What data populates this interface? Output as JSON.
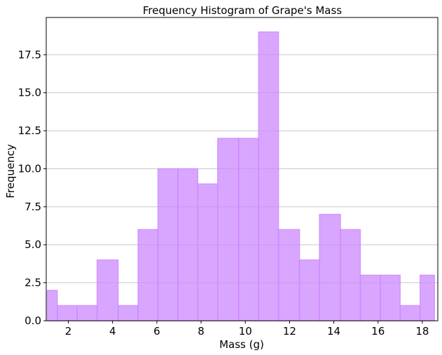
{
  "chart_data": {
    "type": "bar",
    "title": "Frequency Histogram of Grape's Mass",
    "xlabel": "Mass (g)",
    "ylabel": "Frequency",
    "xlim": [
      1.0,
      18.7
    ],
    "ylim": [
      0,
      19.95
    ],
    "bins": [
      {
        "x0": 1.05,
        "x1": 1.5,
        "count": 2
      },
      {
        "x0": 1.5,
        "x1": 2.4,
        "count": 1
      },
      {
        "x0": 2.4,
        "x1": 3.3,
        "count": 1
      },
      {
        "x0": 3.3,
        "x1": 4.25,
        "count": 4
      },
      {
        "x0": 4.25,
        "x1": 5.15,
        "count": 1
      },
      {
        "x0": 5.15,
        "x1": 6.05,
        "count": 6
      },
      {
        "x0": 6.05,
        "x1": 6.95,
        "count": 10
      },
      {
        "x0": 6.95,
        "x1": 7.85,
        "count": 10
      },
      {
        "x0": 7.85,
        "x1": 8.75,
        "count": 9
      },
      {
        "x0": 8.75,
        "x1": 9.7,
        "count": 12
      },
      {
        "x0": 9.7,
        "x1": 10.6,
        "count": 12
      },
      {
        "x0": 10.6,
        "x1": 11.5,
        "count": 19
      },
      {
        "x0": 11.5,
        "x1": 12.45,
        "count": 6
      },
      {
        "x0": 12.45,
        "x1": 13.35,
        "count": 4
      },
      {
        "x0": 13.35,
        "x1": 14.3,
        "count": 7
      },
      {
        "x0": 14.3,
        "x1": 15.2,
        "count": 6
      },
      {
        "x0": 15.2,
        "x1": 16.1,
        "count": 3
      },
      {
        "x0": 16.1,
        "x1": 17.0,
        "count": 3
      },
      {
        "x0": 17.0,
        "x1": 17.9,
        "count": 1
      },
      {
        "x0": 17.9,
        "x1": 18.55,
        "count": 3
      }
    ],
    "x_ticks": [
      2,
      4,
      6,
      8,
      10,
      12,
      14,
      16,
      18
    ],
    "x_tick_labels": [
      "2",
      "4",
      "6",
      "8",
      "10",
      "12",
      "14",
      "16",
      "18"
    ],
    "y_ticks": [
      0,
      2.5,
      5,
      7.5,
      10,
      12.5,
      15,
      17.5
    ],
    "y_tick_labels": [
      "0.0",
      "2.5",
      "5.0",
      "7.5",
      "10.0",
      "12.5",
      "15.0",
      "17.5"
    ],
    "grid": "y",
    "bar_color": "#cc88ff",
    "bar_alpha": 0.75
  }
}
